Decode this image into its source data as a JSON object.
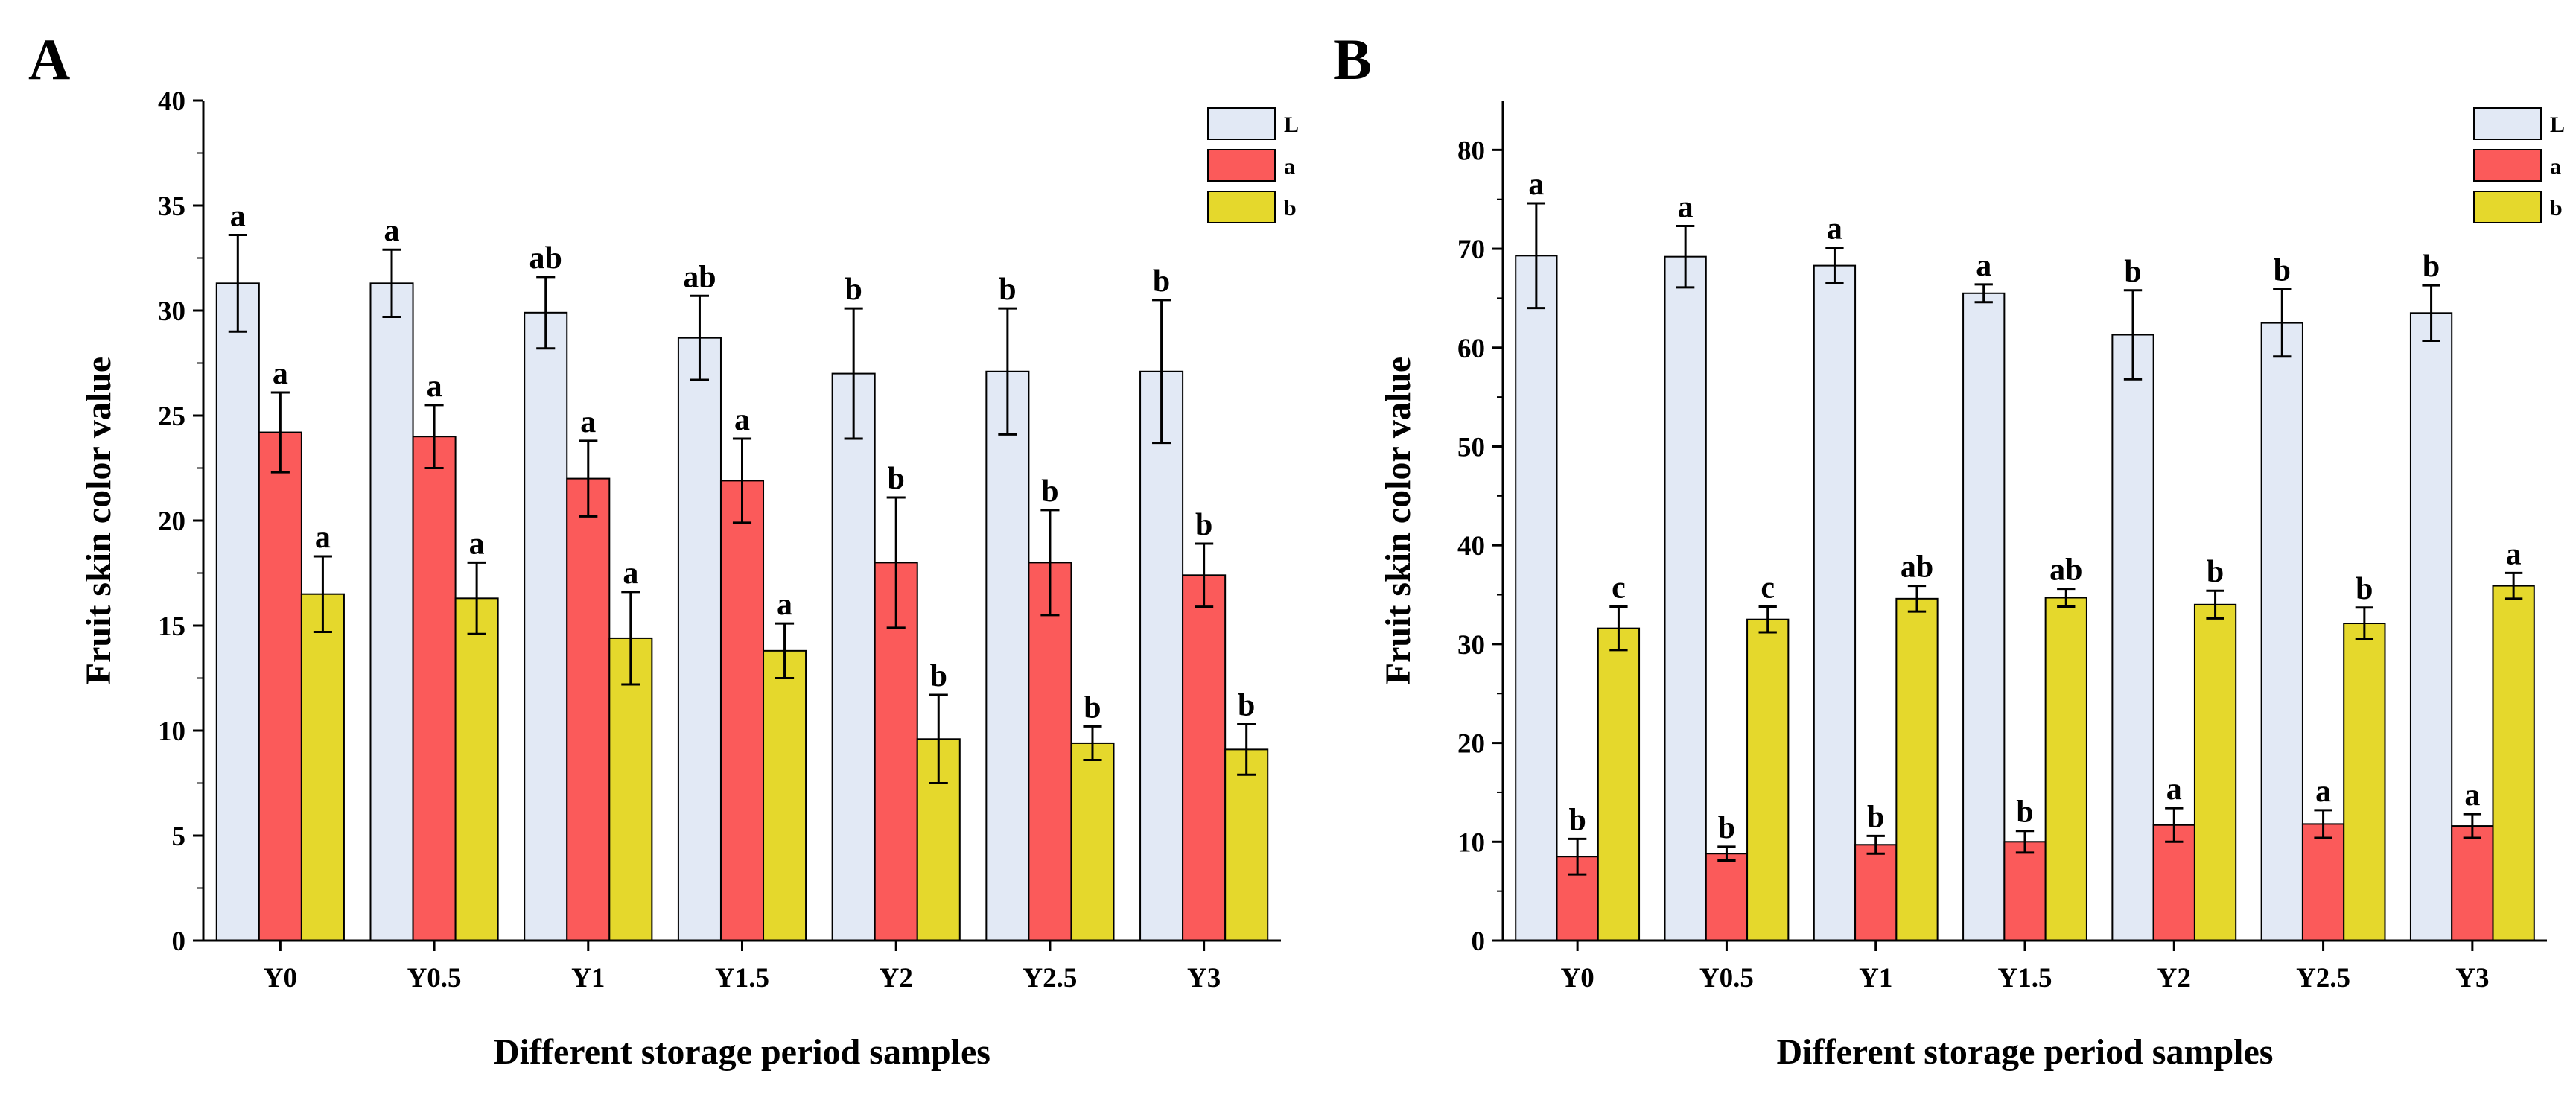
{
  "figure": {
    "panels": [
      "A",
      "B"
    ]
  },
  "colors": {
    "L": "#e2e9f5",
    "a": "#fb5a5a",
    "b": "#e5d82c",
    "stroke": "#000000"
  },
  "chart_data": [
    {
      "type": "bar",
      "panel": "A",
      "title": "",
      "xlabel": "Different storage period samples",
      "ylabel": "Fruit skin color value",
      "ylim": [
        0,
        40
      ],
      "yticks": [
        0,
        5,
        10,
        15,
        20,
        25,
        30,
        35,
        40
      ],
      "categories": [
        "Y0",
        "Y0.5",
        "Y1",
        "Y1.5",
        "Y2",
        "Y2.5",
        "Y3"
      ],
      "legend": {
        "position": "top-right",
        "entries": [
          "L",
          "a",
          "b"
        ]
      },
      "series": [
        {
          "name": "L",
          "color": "#e2e9f5",
          "values": [
            31.3,
            31.3,
            29.9,
            28.7,
            27.0,
            27.1,
            27.1
          ],
          "errors": [
            2.3,
            1.6,
            1.7,
            2.0,
            3.1,
            3.0,
            3.4
          ],
          "labels": [
            "a",
            "a",
            "ab",
            "ab",
            "b",
            "b",
            "b"
          ]
        },
        {
          "name": "a",
          "color": "#fb5a5a",
          "values": [
            24.2,
            24.0,
            22.0,
            21.9,
            18.0,
            18.0,
            17.4
          ],
          "errors": [
            1.9,
            1.5,
            1.8,
            2.0,
            3.1,
            2.5,
            1.5
          ],
          "labels": [
            "a",
            "a",
            "a",
            "a",
            "b",
            "b",
            "b"
          ]
        },
        {
          "name": "b",
          "color": "#e5d82c",
          "values": [
            16.5,
            16.3,
            14.4,
            13.8,
            9.6,
            9.4,
            9.1
          ],
          "errors": [
            1.8,
            1.7,
            2.2,
            1.3,
            2.1,
            0.8,
            1.2
          ],
          "labels": [
            "a",
            "a",
            "a",
            "a",
            "b",
            "b",
            "b"
          ]
        }
      ]
    },
    {
      "type": "bar",
      "panel": "B",
      "title": "",
      "xlabel": "Different storage period samples",
      "ylabel": "Fruit skin color value",
      "ylim": [
        0,
        85
      ],
      "yticks": [
        0,
        10,
        20,
        30,
        40,
        50,
        60,
        70,
        80
      ],
      "categories": [
        "Y0",
        "Y0.5",
        "Y1",
        "Y1.5",
        "Y2",
        "Y2.5",
        "Y3"
      ],
      "legend": {
        "position": "top-right",
        "entries": [
          "L",
          "a",
          "b"
        ]
      },
      "series": [
        {
          "name": "L",
          "color": "#e2e9f5",
          "values": [
            69.3,
            69.2,
            68.3,
            65.5,
            61.3,
            62.5,
            63.5
          ],
          "errors": [
            5.3,
            3.1,
            1.8,
            0.9,
            4.5,
            3.4,
            2.8
          ],
          "labels": [
            "a",
            "a",
            "a",
            "a",
            "b",
            "b",
            "b"
          ]
        },
        {
          "name": "a",
          "color": "#fb5a5a",
          "values": [
            8.5,
            8.8,
            9.7,
            10.0,
            11.7,
            11.8,
            11.6
          ],
          "errors": [
            1.8,
            0.7,
            0.9,
            1.1,
            1.7,
            1.4,
            1.2
          ],
          "labels": [
            "b",
            "b",
            "b",
            "b",
            "a",
            "a",
            "a"
          ]
        },
        {
          "name": "b",
          "color": "#e5d82c",
          "values": [
            31.6,
            32.5,
            34.6,
            34.7,
            34.0,
            32.1,
            35.9
          ],
          "errors": [
            2.2,
            1.3,
            1.3,
            0.9,
            1.4,
            1.6,
            1.3
          ],
          "labels": [
            "c",
            "c",
            "ab",
            "ab",
            "b",
            "b",
            "a"
          ]
        }
      ]
    }
  ]
}
